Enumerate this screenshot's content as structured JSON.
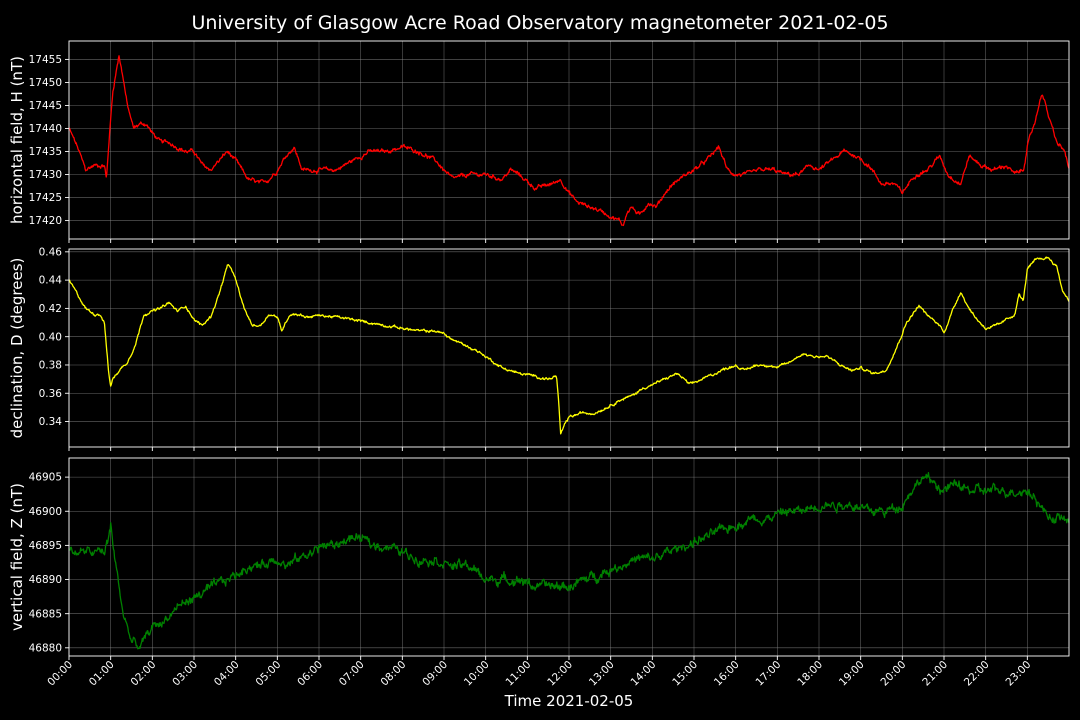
{
  "chart_data": {
    "type": "line",
    "title": "University of Glasgow Acre Road Observatory magnetometer 2021-02-05",
    "xlabel": "Time 2021-02-05",
    "x_tick_labels": [
      "00:00",
      "01:00",
      "02:00",
      "03:00",
      "04:00",
      "05:00",
      "06:00",
      "07:00",
      "08:00",
      "09:00",
      "10:00",
      "11:00",
      "12:00",
      "13:00",
      "14:00",
      "15:00",
      "16:00",
      "17:00",
      "18:00",
      "19:00",
      "20:00",
      "21:00",
      "22:00",
      "23:00"
    ],
    "x_tick_hours": [
      0,
      1,
      2,
      3,
      4,
      5,
      6,
      7,
      8,
      9,
      10,
      11,
      12,
      13,
      14,
      15,
      16,
      17,
      18,
      19,
      20,
      21,
      22,
      23
    ],
    "xlim_hours": [
      0,
      24
    ],
    "grid": true,
    "panels": [
      {
        "name": "horizontal",
        "ylabel": "horizontal field, H (nT)",
        "color": "#ff0000",
        "ylim": [
          17416,
          17459
        ],
        "yticks": [
          17420,
          17425,
          17430,
          17435,
          17440,
          17445,
          17450,
          17455
        ],
        "ytick_labels": [
          "17420",
          "17425",
          "17430",
          "17435",
          "17440",
          "17445",
          "17450",
          "17455"
        ],
        "noise": 0.6,
        "x": [
          0,
          0.2,
          0.4,
          0.6,
          0.85,
          0.9,
          0.95,
          1.05,
          1.2,
          1.3,
          1.4,
          1.55,
          1.7,
          1.85,
          2.0,
          2.2,
          2.4,
          2.6,
          2.8,
          3.0,
          3.2,
          3.4,
          3.6,
          3.8,
          4.0,
          4.3,
          4.6,
          4.8,
          5.0,
          5.2,
          5.4,
          5.6,
          6.0,
          6.4,
          6.8,
          7.2,
          7.6,
          8.0,
          8.4,
          8.8,
          9.0,
          9.2,
          9.6,
          10.0,
          10.4,
          10.6,
          10.8,
          11.2,
          11.6,
          11.8,
          12.0,
          12.2,
          12.5,
          12.8,
          13.0,
          13.2,
          13.3,
          13.4,
          13.5,
          13.7,
          13.9,
          14.1,
          14.3,
          14.5,
          14.8,
          15.0,
          15.3,
          15.6,
          15.8,
          16.0,
          16.3,
          16.6,
          16.9,
          17.2,
          17.5,
          17.8,
          18.0,
          18.3,
          18.6,
          18.9,
          19.2,
          19.5,
          19.8,
          20.0,
          20.3,
          20.6,
          20.9,
          21.1,
          21.4,
          21.6,
          21.9,
          22.2,
          22.5,
          22.7,
          22.9,
          23.0,
          23.2,
          23.35,
          23.5,
          23.7,
          23.9,
          24.0
        ],
        "y": [
          17440,
          17436,
          17431,
          17432,
          17432,
          17429,
          17436,
          17448,
          17456,
          17451,
          17445,
          17440,
          17441,
          17441,
          17439,
          17437,
          17437,
          17436,
          17435,
          17435,
          17432,
          17431,
          17433,
          17435,
          17433,
          17429,
          17428,
          17429,
          17431,
          17434,
          17436,
          17431,
          17431,
          17431,
          17433,
          17435,
          17435,
          17436,
          17435,
          17433,
          17431,
          17429,
          17430,
          17430,
          17429,
          17431,
          17430,
          17427,
          17428,
          17429,
          17426,
          17424,
          17423,
          17422,
          17421,
          17420,
          17419,
          17422,
          17423,
          17421,
          17424,
          17423,
          17426,
          17428,
          17430,
          17431,
          17433,
          17436,
          17431,
          17430,
          17430,
          17431,
          17431,
          17430,
          17430,
          17432,
          17431,
          17433,
          17435,
          17434,
          17432,
          17428,
          17428,
          17426,
          17430,
          17431,
          17434,
          17430,
          17428,
          17434,
          17432,
          17431,
          17432,
          17430,
          17431,
          17436,
          17442,
          17448,
          17443,
          17437,
          17435,
          17431
        ],
        "y_scale": "linear"
      },
      {
        "name": "declination",
        "ylabel": "declination, D (degrees)",
        "color": "#ffff00",
        "ylim": [
          0.322,
          0.462
        ],
        "yticks": [
          0.34,
          0.36,
          0.38,
          0.4,
          0.42,
          0.44,
          0.46
        ],
        "ytick_labels": [
          "0.34",
          "0.36",
          "0.38",
          "0.40",
          "0.42",
          "0.44",
          "0.46"
        ],
        "noise": 0.0012,
        "x": [
          0,
          0.2,
          0.4,
          0.6,
          0.75,
          0.85,
          0.95,
          1.0,
          1.05,
          1.2,
          1.4,
          1.6,
          1.8,
          2.0,
          2.2,
          2.4,
          2.6,
          2.8,
          3.0,
          3.2,
          3.4,
          3.6,
          3.8,
          3.9,
          4.0,
          4.2,
          4.4,
          4.6,
          4.8,
          5.0,
          5.1,
          5.3,
          5.5,
          5.7,
          6.0,
          6.4,
          6.8,
          7.2,
          7.6,
          8.0,
          8.4,
          8.8,
          9.0,
          9.2,
          9.5,
          9.8,
          10.1,
          10.4,
          10.8,
          11.2,
          11.5,
          11.7,
          11.75,
          11.8,
          11.9,
          12.0,
          12.3,
          12.6,
          12.9,
          13.2,
          13.5,
          13.8,
          14.0,
          14.3,
          14.6,
          14.9,
          15.2,
          15.5,
          15.8,
          16.0,
          16.2,
          16.5,
          16.8,
          17.0,
          17.3,
          17.6,
          17.9,
          18.2,
          18.5,
          18.8,
          19.0,
          19.3,
          19.6,
          19.9,
          20.1,
          20.4,
          20.6,
          20.9,
          21.0,
          21.2,
          21.4,
          21.6,
          21.8,
          22.0,
          22.3,
          22.5,
          22.7,
          22.8,
          22.9,
          23.0,
          23.2,
          23.5,
          23.7,
          23.85,
          24.0
        ],
        "y": [
          0.44,
          0.43,
          0.42,
          0.416,
          0.416,
          0.41,
          0.375,
          0.365,
          0.37,
          0.376,
          0.382,
          0.395,
          0.416,
          0.418,
          0.42,
          0.424,
          0.418,
          0.422,
          0.412,
          0.408,
          0.414,
          0.43,
          0.45,
          0.448,
          0.44,
          0.42,
          0.408,
          0.408,
          0.416,
          0.414,
          0.404,
          0.416,
          0.416,
          0.414,
          0.415,
          0.414,
          0.412,
          0.41,
          0.408,
          0.406,
          0.404,
          0.404,
          0.402,
          0.398,
          0.394,
          0.39,
          0.384,
          0.378,
          0.374,
          0.372,
          0.37,
          0.372,
          0.355,
          0.33,
          0.338,
          0.343,
          0.346,
          0.346,
          0.35,
          0.355,
          0.358,
          0.364,
          0.366,
          0.37,
          0.374,
          0.366,
          0.37,
          0.374,
          0.378,
          0.38,
          0.376,
          0.38,
          0.38,
          0.378,
          0.382,
          0.388,
          0.386,
          0.386,
          0.38,
          0.376,
          0.378,
          0.374,
          0.376,
          0.395,
          0.41,
          0.422,
          0.415,
          0.408,
          0.403,
          0.418,
          0.432,
          0.42,
          0.412,
          0.406,
          0.408,
          0.412,
          0.416,
          0.43,
          0.425,
          0.448,
          0.454,
          0.456,
          0.45,
          0.432,
          0.426
        ],
        "y_scale": "linear"
      },
      {
        "name": "vertical",
        "ylabel": "vertical field, Z (nT)",
        "color": "#008000",
        "ylim": [
          46878.8,
          46907.8
        ],
        "yticks": [
          46880,
          46885,
          46890,
          46895,
          46900,
          46905
        ],
        "ytick_labels": [
          "46880",
          "46885",
          "46890",
          "46895",
          "46900",
          "46905"
        ],
        "noise": 0.9,
        "x": [
          0,
          0.3,
          0.6,
          0.85,
          0.95,
          1.0,
          1.1,
          1.3,
          1.5,
          1.7,
          1.8,
          2.0,
          2.3,
          2.6,
          2.9,
          3.2,
          3.5,
          3.8,
          4.1,
          4.3,
          4.6,
          4.9,
          5.1,
          5.2,
          5.5,
          5.8,
          6.1,
          6.4,
          6.7,
          7.0,
          7.3,
          7.6,
          8.0,
          8.4,
          8.8,
          9.2,
          9.6,
          10.0,
          10.4,
          10.8,
          11.2,
          11.6,
          12.0,
          12.4,
          12.8,
          13.2,
          13.6,
          14.0,
          14.4,
          14.8,
          15.2,
          15.6,
          16.0,
          16.4,
          16.8,
          17.2,
          17.6,
          18.0,
          18.4,
          18.8,
          19.2,
          19.6,
          20.0,
          20.2,
          20.5,
          20.8,
          21.0,
          21.3,
          21.6,
          21.9,
          22.2,
          22.5,
          22.8,
          23.0,
          23.2,
          23.4,
          23.6,
          23.8,
          24.0
        ],
        "y": [
          46894,
          46894,
          46894,
          46894,
          46896,
          46898,
          46893,
          46885,
          46881,
          46880,
          46881,
          46883,
          46884,
          46886,
          46887,
          46888,
          46889,
          46890,
          46891,
          46892,
          46892,
          46893,
          46893,
          46892,
          46893,
          46894,
          46895,
          46895,
          46896,
          46896,
          46895,
          46895,
          46894,
          46893,
          46893,
          46892,
          46892,
          46890,
          46890,
          46890,
          46889,
          46889,
          46889,
          46890,
          46891,
          46892,
          46893,
          46893,
          46894,
          46895,
          46896,
          46897,
          46898,
          46899,
          46899,
          46900,
          46900,
          46901,
          46901,
          46901,
          46900,
          46900,
          46901,
          46903,
          46905,
          46904,
          46903,
          46904,
          46903,
          46903,
          46903,
          46903,
          46903,
          46903,
          46902,
          46900,
          46899,
          46899,
          46898.5
        ],
        "y_scale": "linear"
      }
    ]
  }
}
